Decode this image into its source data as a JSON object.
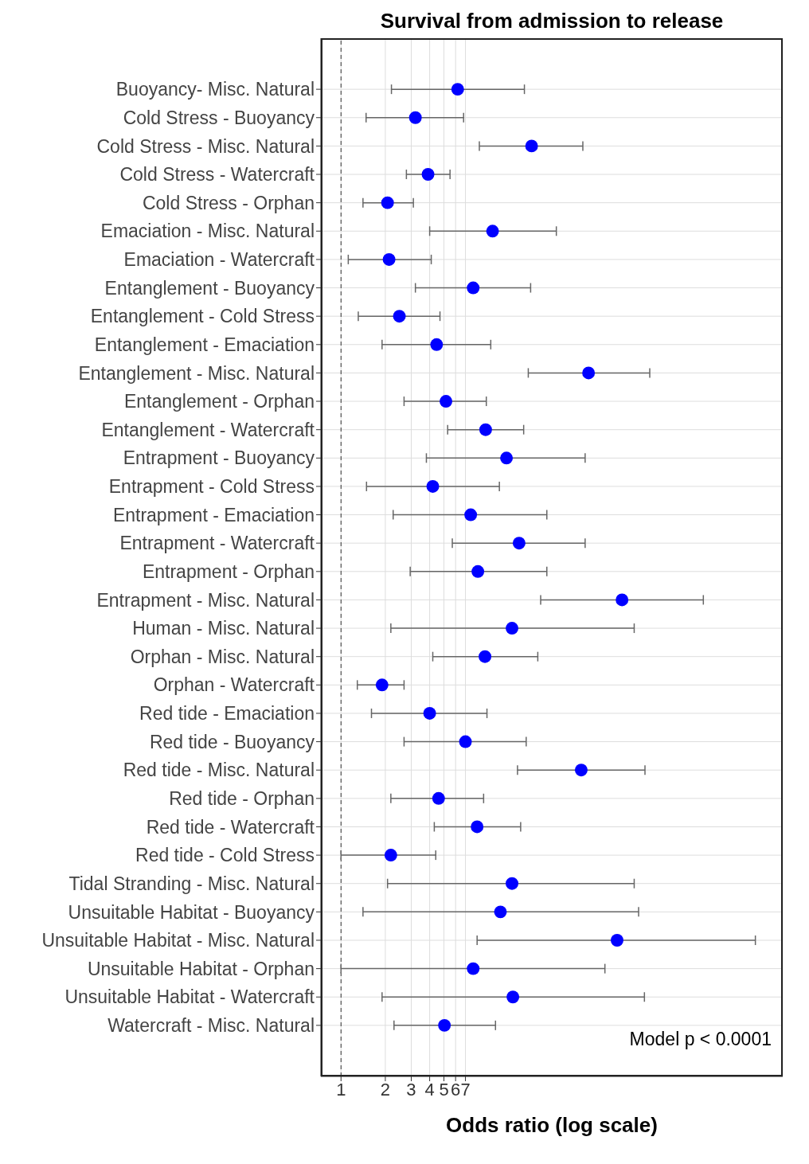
{
  "chart_data": {
    "type": "scatter",
    "title": "Survival from admission to release",
    "xlabel": "Odds ratio (log scale)",
    "orientation": "horizontal",
    "log": "x",
    "xlim": [
      0.73,
      1000
    ],
    "xticks": [
      1,
      2,
      3,
      4,
      5,
      6,
      7
    ],
    "grid": true,
    "marker": "circle",
    "color": "#0000ff",
    "categories": [
      "Buoyancy- Misc. Natural",
      "Cold Stress - Buoyancy",
      "Cold Stress - Misc. Natural",
      "Cold Stress - Watercraft",
      "Cold Stress - Orphan",
      "Emaciation - Misc. Natural",
      "Emaciation - Watercraft",
      "Entanglement - Buoyancy",
      "Entanglement - Cold Stress",
      "Entanglement - Emaciation",
      "Entanglement - Misc. Natural",
      "Entanglement - Orphan",
      "Entanglement - Watercraft",
      "Entrapment - Buoyancy",
      "Entrapment - Cold Stress",
      "Entrapment - Emaciation",
      "Entrapment - Watercraft",
      "Entrapment - Orphan",
      "Entrapment - Misc. Natural",
      "Human - Misc. Natural",
      "Orphan - Misc. Natural",
      "Orphan - Watercraft",
      "Red tide - Emaciation",
      "Red tide - Buoyancy",
      "Red tide - Misc. Natural",
      "Red tide - Orphan",
      "Red tide - Watercraft",
      "Red tide - Cold Stress",
      "Tidal Stranding - Misc. Natural",
      "Unsuitable Habitat - Buoyancy",
      "Unsuitable Habitat - Misc. Natural",
      "Unsuitable Habitat - Orphan",
      "Unsuitable Habitat - Watercraft",
      "Watercraft - Misc. Natural"
    ],
    "values": [
      6.2,
      3.2,
      19.7,
      3.9,
      2.07,
      10.7,
      2.12,
      7.9,
      2.49,
      4.46,
      48,
      5.16,
      9.6,
      13.3,
      4.2,
      7.6,
      16.2,
      8.5,
      81,
      14.5,
      9.5,
      1.9,
      4.0,
      7.0,
      42.8,
      4.6,
      8.4,
      2.18,
      14.5,
      12.1,
      75,
      7.9,
      14.7,
      5.04
    ],
    "errors": [
      [
        2.2,
        17.6
      ],
      [
        1.48,
        6.8
      ],
      [
        8.7,
        43.9
      ],
      [
        2.78,
        5.5
      ],
      [
        1.41,
        3.1
      ],
      [
        4.0,
        29
      ],
      [
        1.12,
        4.1
      ],
      [
        3.2,
        19.4
      ],
      [
        1.31,
        4.7
      ],
      [
        1.9,
        10.4
      ],
      [
        18.7,
        125
      ],
      [
        2.68,
        9.7
      ],
      [
        5.3,
        17.4
      ],
      [
        3.8,
        45.5
      ],
      [
        1.49,
        11.9
      ],
      [
        2.26,
        25
      ],
      [
        5.7,
        45.5
      ],
      [
        2.95,
        25
      ],
      [
        22.7,
        289
      ],
      [
        2.18,
        98
      ],
      [
        4.2,
        21.7
      ],
      [
        1.29,
        2.68
      ],
      [
        1.61,
        9.8
      ],
      [
        2.68,
        18.1
      ],
      [
        15.8,
        116
      ],
      [
        2.18,
        9.3
      ],
      [
        4.3,
        16.6
      ],
      [
        1.0,
        4.4
      ],
      [
        2.07,
        98
      ],
      [
        1.41,
        105
      ],
      [
        8.4,
        652
      ],
      [
        1.0,
        62
      ],
      [
        1.9,
        115
      ],
      [
        2.29,
        11.2
      ]
    ],
    "ref_lines": [
      {
        "axis": "x",
        "value": 1,
        "line_style": "dashed"
      }
    ],
    "annotations": [
      "Model p < 0.0001"
    ]
  }
}
